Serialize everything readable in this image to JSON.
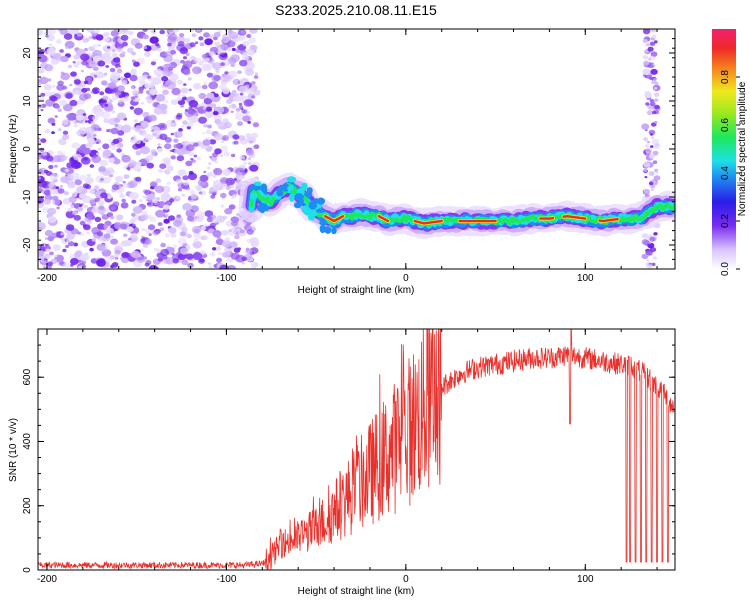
{
  "title": "S233.2025.210.08.11.E15",
  "chart_data": [
    {
      "type": "heatmap",
      "xlabel": "Height of straight line (km)",
      "ylabel": "Frequency (Hz)",
      "xlim": [
        -205,
        150
      ],
      "ylim": [
        -25,
        25
      ],
      "xticks": [
        -200,
        -100,
        0,
        100
      ],
      "yticks": [
        20,
        10,
        0,
        -10,
        -20
      ],
      "colorbar": {
        "label": "Normalized spectral amplitude",
        "range": [
          0,
          1
        ],
        "ticks": [
          "0.0",
          "0.2",
          "0.4",
          "0.6",
          "0.8"
        ]
      },
      "ridge": {
        "x": [
          -85,
          -80,
          -75,
          -70,
          -65,
          -60,
          -55,
          -50,
          -45,
          -40,
          -35,
          -30,
          -25,
          -20,
          -15,
          -10,
          -5,
          0,
          10,
          20,
          30,
          40,
          50,
          60,
          70,
          80,
          90,
          100,
          110,
          120,
          130,
          140,
          150
        ],
        "y": [
          -9,
          -10,
          -11,
          -9,
          -8,
          -9,
          -11,
          -13,
          -14,
          -15,
          -14,
          -14,
          -13.5,
          -14,
          -14,
          -15,
          -14.5,
          -14.5,
          -15.5,
          -15,
          -15,
          -15,
          -15,
          -15,
          -14.5,
          -14.5,
          -14,
          -14.5,
          -15,
          -14.5,
          -14.5,
          -12,
          -12
        ]
      }
    },
    {
      "type": "line",
      "xlabel": "Height of straight line (km)",
      "ylabel": "SNR (10 * v/v)",
      "xlim": [
        -205,
        150
      ],
      "ylim": [
        0,
        750
      ],
      "xticks": [
        -200,
        -100,
        0,
        100
      ],
      "yticks": [
        0,
        200,
        400,
        600
      ],
      "series": [
        {
          "color": "#e8312c",
          "x": [
            -205,
            -180,
            -150,
            -120,
            -90,
            -80,
            -75,
            -70,
            -60,
            -50,
            -40,
            -30,
            -20,
            -10,
            0,
            10,
            20,
            30,
            40,
            50,
            60,
            70,
            80,
            90,
            100,
            110,
            120,
            125,
            130,
            135,
            140,
            145,
            150
          ],
          "values": [
            15,
            15,
            15,
            15,
            15,
            20,
            40,
            80,
            100,
            130,
            180,
            240,
            300,
            360,
            420,
            500,
            570,
            610,
            630,
            640,
            650,
            660,
            660,
            670,
            660,
            650,
            640,
            640,
            620,
            600,
            570,
            540,
            500
          ]
        }
      ]
    }
  ]
}
